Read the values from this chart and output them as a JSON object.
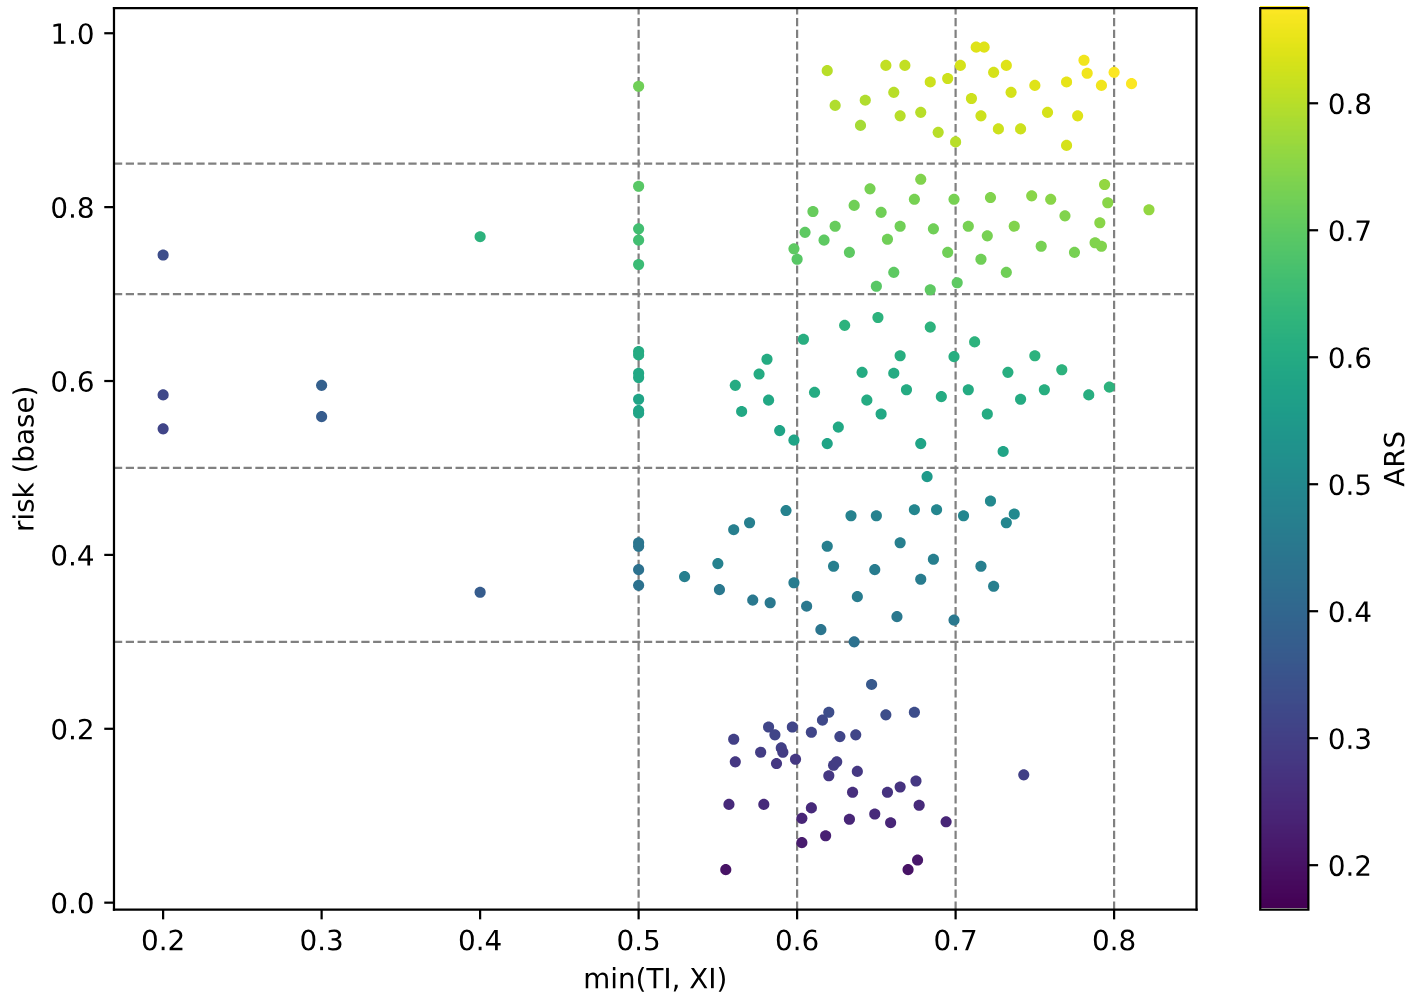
{
  "chart_data": {
    "type": "scatter",
    "xlabel": "min(TI, XI)",
    "ylabel": "risk (base)",
    "clabel": "ARS",
    "xlim": [
      0.169,
      0.852
    ],
    "ylim": [
      -0.008,
      1.029
    ],
    "xticks": [
      0.2,
      0.3,
      0.4,
      0.5,
      0.6,
      0.7,
      0.8
    ],
    "yticks": [
      {
        "value": 0,
        "label": "0.0"
      },
      0.2,
      0.4,
      0.6,
      0.8,
      {
        "value": 1,
        "label": "1.0"
      }
    ],
    "clim": [
      0.165,
      0.875
    ],
    "cticks": [
      0.2,
      0.3,
      0.4,
      0.5,
      0.6,
      0.7,
      0.8
    ],
    "grid": false,
    "marker": "circle",
    "ref_lines": [
      {
        "axis": "x",
        "value": 0.5,
        "color": "#808080",
        "line_style": "dashed"
      },
      {
        "axis": "x",
        "value": 0.6,
        "color": "#808080",
        "line_style": "dashed"
      },
      {
        "axis": "x",
        "value": 0.7,
        "color": "#808080",
        "line_style": "dashed"
      },
      {
        "axis": "x",
        "value": 0.8,
        "color": "#808080",
        "line_style": "dashed"
      },
      {
        "axis": "y",
        "value": 0.3,
        "color": "#808080",
        "line_style": "dashed"
      },
      {
        "axis": "y",
        "value": 0.5,
        "color": "#808080",
        "line_style": "dashed"
      },
      {
        "axis": "y",
        "value": 0.7,
        "color": "#808080",
        "line_style": "dashed"
      },
      {
        "axis": "y",
        "value": 0.85,
        "color": "#808080",
        "line_style": "dashed"
      }
    ],
    "series": [
      {
        "x": [
          0.2,
          0.2,
          0.2,
          0.3,
          0.3,
          0.4,
          0.4,
          0.5,
          0.5,
          0.5,
          0.5,
          0.5,
          0.5,
          0.5,
          0.5,
          0.5,
          0.5,
          0.5,
          0.5,
          0.5,
          0.5,
          0.5,
          0.5,
          0.529,
          0.55,
          0.619,
          0.624,
          0.64,
          0.643,
          0.656,
          0.668,
          0.661,
          0.665,
          0.678,
          0.689,
          0.684,
          0.695,
          0.7,
          0.703,
          0.713,
          0.718,
          0.71,
          0.724,
          0.732,
          0.727,
          0.735,
          0.741,
          0.75,
          0.758,
          0.77,
          0.77,
          0.781,
          0.783,
          0.792,
          0.8,
          0.811,
          0.777,
          0.716,
          0.598,
          0.6,
          0.605,
          0.61,
          0.617,
          0.624,
          0.633,
          0.636,
          0.646,
          0.65,
          0.653,
          0.661,
          0.665,
          0.678,
          0.674,
          0.684,
          0.686,
          0.695,
          0.699,
          0.701,
          0.708,
          0.716,
          0.722,
          0.732,
          0.737,
          0.748,
          0.754,
          0.76,
          0.769,
          0.775,
          0.788,
          0.792,
          0.791,
          0.794,
          0.796,
          0.822,
          0.657,
          0.72,
          0.561,
          0.565,
          0.576,
          0.581,
          0.582,
          0.589,
          0.598,
          0.604,
          0.611,
          0.619,
          0.626,
          0.63,
          0.641,
          0.651,
          0.653,
          0.665,
          0.669,
          0.678,
          0.684,
          0.691,
          0.699,
          0.708,
          0.712,
          0.72,
          0.73,
          0.733,
          0.741,
          0.75,
          0.756,
          0.767,
          0.784,
          0.797,
          0.682,
          0.644,
          0.661,
          0.551,
          0.56,
          0.57,
          0.572,
          0.583,
          0.593,
          0.598,
          0.606,
          0.615,
          0.619,
          0.636,
          0.638,
          0.634,
          0.65,
          0.649,
          0.663,
          0.665,
          0.674,
          0.678,
          0.688,
          0.699,
          0.705,
          0.716,
          0.724,
          0.722,
          0.732,
          0.737,
          0.623,
          0.686,
          0.56,
          0.561,
          0.557,
          0.555,
          0.577,
          0.579,
          0.582,
          0.586,
          0.587,
          0.59,
          0.591,
          0.597,
          0.599,
          0.603,
          0.603,
          0.609,
          0.609,
          0.616,
          0.62,
          0.618,
          0.62,
          0.623,
          0.625,
          0.627,
          0.633,
          0.635,
          0.637,
          0.638,
          0.647,
          0.649,
          0.656,
          0.657,
          0.659,
          0.665,
          0.67,
          0.674,
          0.675,
          0.676,
          0.677,
          0.694,
          0.743
        ],
        "values": [
          0.745,
          0.584,
          0.545,
          0.595,
          0.559,
          0.766,
          0.357,
          0.939,
          0.824,
          0.775,
          0.762,
          0.734,
          0.634,
          0.63,
          0.609,
          0.604,
          0.579,
          0.566,
          0.563,
          0.414,
          0.41,
          0.383,
          0.365,
          0.375,
          0.39,
          0.957,
          0.917,
          0.894,
          0.923,
          0.963,
          0.963,
          0.932,
          0.905,
          0.909,
          0.886,
          0.944,
          0.948,
          0.875,
          0.963,
          0.984,
          0.984,
          0.925,
          0.955,
          0.963,
          0.89,
          0.932,
          0.89,
          0.94,
          0.909,
          0.944,
          0.871,
          0.969,
          0.954,
          0.94,
          0.955,
          0.942,
          0.905,
          0.905,
          0.752,
          0.74,
          0.771,
          0.795,
          0.762,
          0.778,
          0.748,
          0.802,
          0.821,
          0.709,
          0.794,
          0.725,
          0.778,
          0.832,
          0.809,
          0.705,
          0.775,
          0.748,
          0.809,
          0.713,
          0.778,
          0.74,
          0.811,
          0.725,
          0.778,
          0.813,
          0.755,
          0.809,
          0.79,
          0.748,
          0.759,
          0.755,
          0.782,
          0.826,
          0.805,
          0.797,
          0.763,
          0.767,
          0.595,
          0.565,
          0.608,
          0.625,
          0.578,
          0.543,
          0.532,
          0.648,
          0.587,
          0.528,
          0.547,
          0.664,
          0.61,
          0.673,
          0.562,
          0.629,
          0.59,
          0.528,
          0.662,
          0.582,
          0.628,
          0.59,
          0.645,
          0.562,
          0.519,
          0.61,
          0.579,
          0.629,
          0.59,
          0.613,
          0.584,
          0.593,
          0.49,
          0.578,
          0.609,
          0.36,
          0.429,
          0.437,
          0.348,
          0.345,
          0.451,
          0.368,
          0.341,
          0.314,
          0.41,
          0.3,
          0.352,
          0.445,
          0.445,
          0.383,
          0.329,
          0.414,
          0.452,
          0.372,
          0.452,
          0.325,
          0.445,
          0.387,
          0.364,
          0.462,
          0.437,
          0.447,
          0.387,
          0.395,
          0.188,
          0.162,
          0.113,
          0.038,
          0.173,
          0.113,
          0.202,
          0.193,
          0.16,
          0.178,
          0.173,
          0.202,
          0.165,
          0.097,
          0.069,
          0.109,
          0.196,
          0.21,
          0.219,
          0.077,
          0.146,
          0.158,
          0.162,
          0.191,
          0.096,
          0.127,
          0.193,
          0.151,
          0.251,
          0.102,
          0.216,
          0.127,
          0.092,
          0.133,
          0.038,
          0.219,
          0.14,
          0.049,
          0.112,
          0.093,
          0.147
        ],
        "cvalues": [
          0.33,
          0.32,
          0.31,
          0.38,
          0.37,
          0.62,
          0.37,
          0.72,
          0.69,
          0.66,
          0.66,
          0.65,
          0.6,
          0.6,
          0.59,
          0.59,
          0.58,
          0.58,
          0.58,
          0.44,
          0.44,
          0.43,
          0.43,
          0.47,
          0.48,
          0.8,
          0.79,
          0.78,
          0.79,
          0.81,
          0.81,
          0.8,
          0.8,
          0.8,
          0.8,
          0.82,
          0.82,
          0.8,
          0.83,
          0.84,
          0.84,
          0.82,
          0.83,
          0.84,
          0.82,
          0.83,
          0.82,
          0.84,
          0.83,
          0.85,
          0.83,
          0.86,
          0.86,
          0.86,
          0.87,
          0.87,
          0.84,
          0.82,
          0.7,
          0.69,
          0.7,
          0.71,
          0.7,
          0.71,
          0.7,
          0.72,
          0.73,
          0.69,
          0.72,
          0.7,
          0.72,
          0.74,
          0.73,
          0.7,
          0.72,
          0.72,
          0.73,
          0.7,
          0.73,
          0.72,
          0.74,
          0.72,
          0.74,
          0.75,
          0.73,
          0.75,
          0.74,
          0.73,
          0.74,
          0.74,
          0.75,
          0.76,
          0.75,
          0.76,
          0.72,
          0.73,
          0.6,
          0.59,
          0.6,
          0.6,
          0.59,
          0.58,
          0.58,
          0.61,
          0.6,
          0.58,
          0.59,
          0.62,
          0.6,
          0.62,
          0.59,
          0.61,
          0.6,
          0.58,
          0.62,
          0.6,
          0.61,
          0.6,
          0.62,
          0.6,
          0.58,
          0.61,
          0.6,
          0.62,
          0.61,
          0.62,
          0.61,
          0.62,
          0.55,
          0.6,
          0.6,
          0.45,
          0.47,
          0.47,
          0.45,
          0.45,
          0.48,
          0.46,
          0.45,
          0.44,
          0.47,
          0.43,
          0.46,
          0.48,
          0.48,
          0.46,
          0.45,
          0.47,
          0.49,
          0.46,
          0.49,
          0.45,
          0.49,
          0.47,
          0.47,
          0.5,
          0.49,
          0.5,
          0.47,
          0.47,
          0.3,
          0.28,
          0.25,
          0.2,
          0.29,
          0.25,
          0.31,
          0.31,
          0.28,
          0.3,
          0.29,
          0.31,
          0.28,
          0.24,
          0.22,
          0.25,
          0.31,
          0.32,
          0.33,
          0.23,
          0.28,
          0.29,
          0.29,
          0.31,
          0.24,
          0.26,
          0.31,
          0.28,
          0.36,
          0.25,
          0.33,
          0.27,
          0.24,
          0.27,
          0.2,
          0.33,
          0.28,
          0.21,
          0.25,
          0.24,
          0.3
        ]
      }
    ]
  }
}
